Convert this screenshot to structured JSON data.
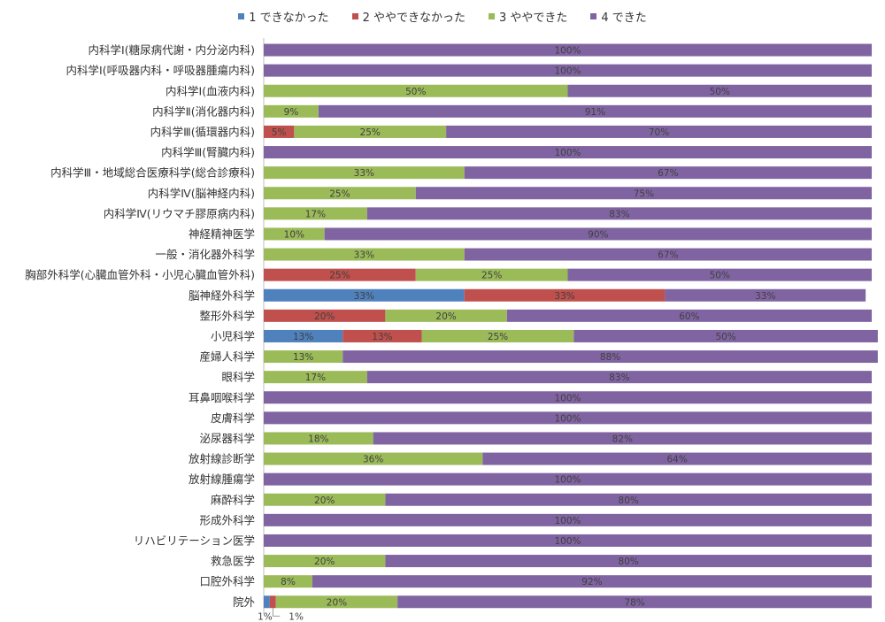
{
  "chart_data": {
    "type": "bar",
    "orientation": "horizontal",
    "stacked": true,
    "normalized": true,
    "categories": [
      "内科学Ⅰ(糖尿病代謝・内分泌内科)",
      "内科学Ⅰ(呼吸器内科・呼吸器腫瘍内科)",
      "内科学Ⅰ(血液内科)",
      "内科学Ⅱ(消化器内科)",
      "内科学Ⅲ(循環器内科)",
      "内科学Ⅲ(腎臓内科)",
      "内科学Ⅲ・地域総合医療科学(総合診療科)",
      "内科学Ⅳ(脳神経内科)",
      "内科学Ⅳ(リウマチ膠原病内科)",
      "神経精神医学",
      "一般・消化器外科学",
      "胸部外科学(心臓血管外科・小児心臓血管外科)",
      "脳神経外科学",
      "整形外科学",
      "小児科学",
      "産婦人科学",
      "眼科学",
      "耳鼻咽喉科学",
      "皮膚科学",
      "泌尿器科学",
      "放射線診断学",
      "放射線腫瘍学",
      "麻酔科学",
      "形成外科学",
      "リハビリテーション医学",
      "救急医学",
      "口腔外科学",
      "院外"
    ],
    "series": [
      {
        "name": "1 できなかった",
        "color": "#4f81bd",
        "values": [
          0,
          0,
          0,
          0,
          0,
          0,
          0,
          0,
          0,
          0,
          0,
          0,
          33,
          0,
          13,
          0,
          0,
          0,
          0,
          0,
          0,
          0,
          0,
          0,
          0,
          0,
          0,
          1
        ]
      },
      {
        "name": "2 ややできなかった",
        "color": "#c0504d",
        "values": [
          0,
          0,
          0,
          0,
          5,
          0,
          0,
          0,
          0,
          0,
          0,
          25,
          33,
          20,
          13,
          0,
          0,
          0,
          0,
          0,
          0,
          0,
          0,
          0,
          0,
          0,
          0,
          1
        ]
      },
      {
        "name": "3 ややできた",
        "color": "#9bbb59",
        "values": [
          0,
          0,
          50,
          9,
          25,
          0,
          33,
          25,
          17,
          10,
          33,
          25,
          0,
          20,
          25,
          13,
          17,
          0,
          0,
          18,
          36,
          0,
          20,
          0,
          0,
          20,
          8,
          20
        ]
      },
      {
        "name": "4 できた",
        "color": "#8064a2",
        "values": [
          100,
          100,
          50,
          91,
          70,
          100,
          67,
          75,
          83,
          90,
          67,
          50,
          33,
          60,
          50,
          88,
          83,
          100,
          100,
          82,
          64,
          100,
          80,
          100,
          100,
          80,
          92,
          78
        ]
      }
    ],
    "value_suffix": "%",
    "xlim": [
      0,
      100
    ],
    "legend_position": "top",
    "grid": false
  }
}
